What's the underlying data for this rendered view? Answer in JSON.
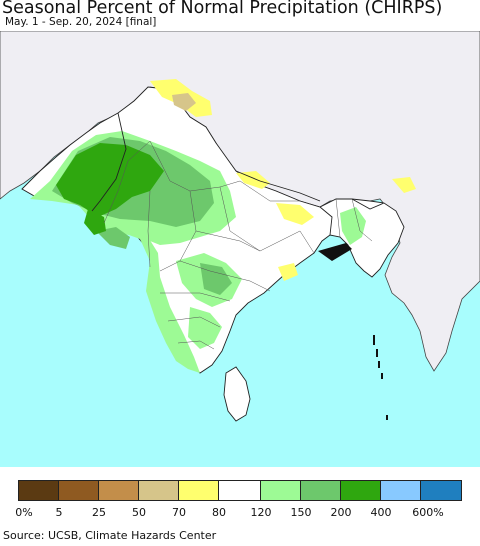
{
  "title": "Seasonal Percent of Normal Precipitation (CHIRPS)",
  "subtitle": "May. 1 - Sep. 20, 2024 [final]",
  "source": "Source: UCSB, Climate Hazards Center",
  "legend": {
    "colors": [
      "#5b3a12",
      "#8f5a21",
      "#c38e4a",
      "#d6c58a",
      "#ffff6e",
      "#ffffff",
      "#9dfa95",
      "#6dc86c",
      "#2fa70f",
      "#88c9ff",
      "#1f7fbf"
    ],
    "ticks": [
      "0%",
      "5",
      "25",
      "50",
      "70",
      "80",
      "120",
      "150",
      "200",
      "400",
      "600%"
    ]
  },
  "map_colors": {
    "ocean": "#a8fdfd",
    "land_outside": "#efeef3",
    "near_normal": "#ffffff",
    "above_120": "#9dfa95",
    "above_150": "#6dc86c",
    "above_200": "#2fa70f",
    "below_80": "#ffff6e",
    "below_70": "#d6c58a"
  }
}
